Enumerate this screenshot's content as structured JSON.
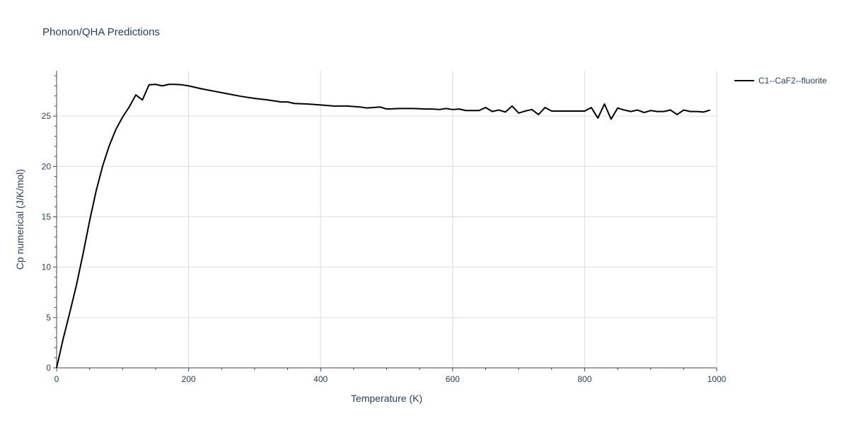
{
  "chart_data": {
    "type": "line",
    "title": "Phonon/QHA Predictions",
    "xlabel": "Temperature (K)",
    "ylabel": "Cp numerical (J/K/mol)",
    "xlim": [
      0,
      1000
    ],
    "ylim": [
      0,
      29.5
    ],
    "xticks": [
      0,
      200,
      400,
      600,
      800,
      1000
    ],
    "yticks": [
      0,
      5,
      10,
      15,
      20,
      25
    ],
    "grid": true,
    "legend_position": "top-right",
    "colors": {
      "series": "#000000",
      "grid": "#dddddd",
      "text": "#2a3f5f",
      "axis": "#444444"
    },
    "series": [
      {
        "name": "C1--CaF2--fluorite",
        "x": [
          0,
          10,
          20,
          30,
          40,
          50,
          60,
          70,
          80,
          90,
          100,
          110,
          120,
          130,
          140,
          150,
          160,
          170,
          180,
          190,
          200,
          220,
          240,
          260,
          280,
          300,
          320,
          340,
          350,
          360,
          380,
          400,
          420,
          430,
          440,
          460,
          470,
          480,
          490,
          500,
          520,
          540,
          560,
          570,
          580,
          590,
          600,
          610,
          620,
          630,
          640,
          650,
          660,
          670,
          680,
          690,
          700,
          710,
          720,
          730,
          740,
          750,
          760,
          770,
          780,
          790,
          800,
          810,
          820,
          830,
          840,
          850,
          860,
          870,
          880,
          890,
          900,
          910,
          920,
          930,
          940,
          950,
          960,
          970,
          980,
          990
        ],
        "values": [
          0,
          2.9,
          5.5,
          8.2,
          11.3,
          14.6,
          17.6,
          20.1,
          22.1,
          23.7,
          24.9,
          25.9,
          27.1,
          26.6,
          28.1,
          28.15,
          28.0,
          28.15,
          28.15,
          28.1,
          28.0,
          27.7,
          27.45,
          27.2,
          26.95,
          26.75,
          26.6,
          26.4,
          26.4,
          26.25,
          26.2,
          26.1,
          26.0,
          26.0,
          26.0,
          25.9,
          25.8,
          25.85,
          25.9,
          25.7,
          25.75,
          25.75,
          25.7,
          25.7,
          25.65,
          25.75,
          25.65,
          25.7,
          25.55,
          25.55,
          25.55,
          25.85,
          25.45,
          25.6,
          25.4,
          26.0,
          25.3,
          25.5,
          25.65,
          25.15,
          25.85,
          25.5,
          25.5,
          25.5,
          25.5,
          25.5,
          25.5,
          25.85,
          24.8,
          26.2,
          24.7,
          25.8,
          25.6,
          25.45,
          25.6,
          25.35,
          25.55,
          25.45,
          25.45,
          25.6,
          25.15,
          25.6,
          25.45,
          25.45,
          25.4,
          25.6
        ]
      }
    ]
  }
}
